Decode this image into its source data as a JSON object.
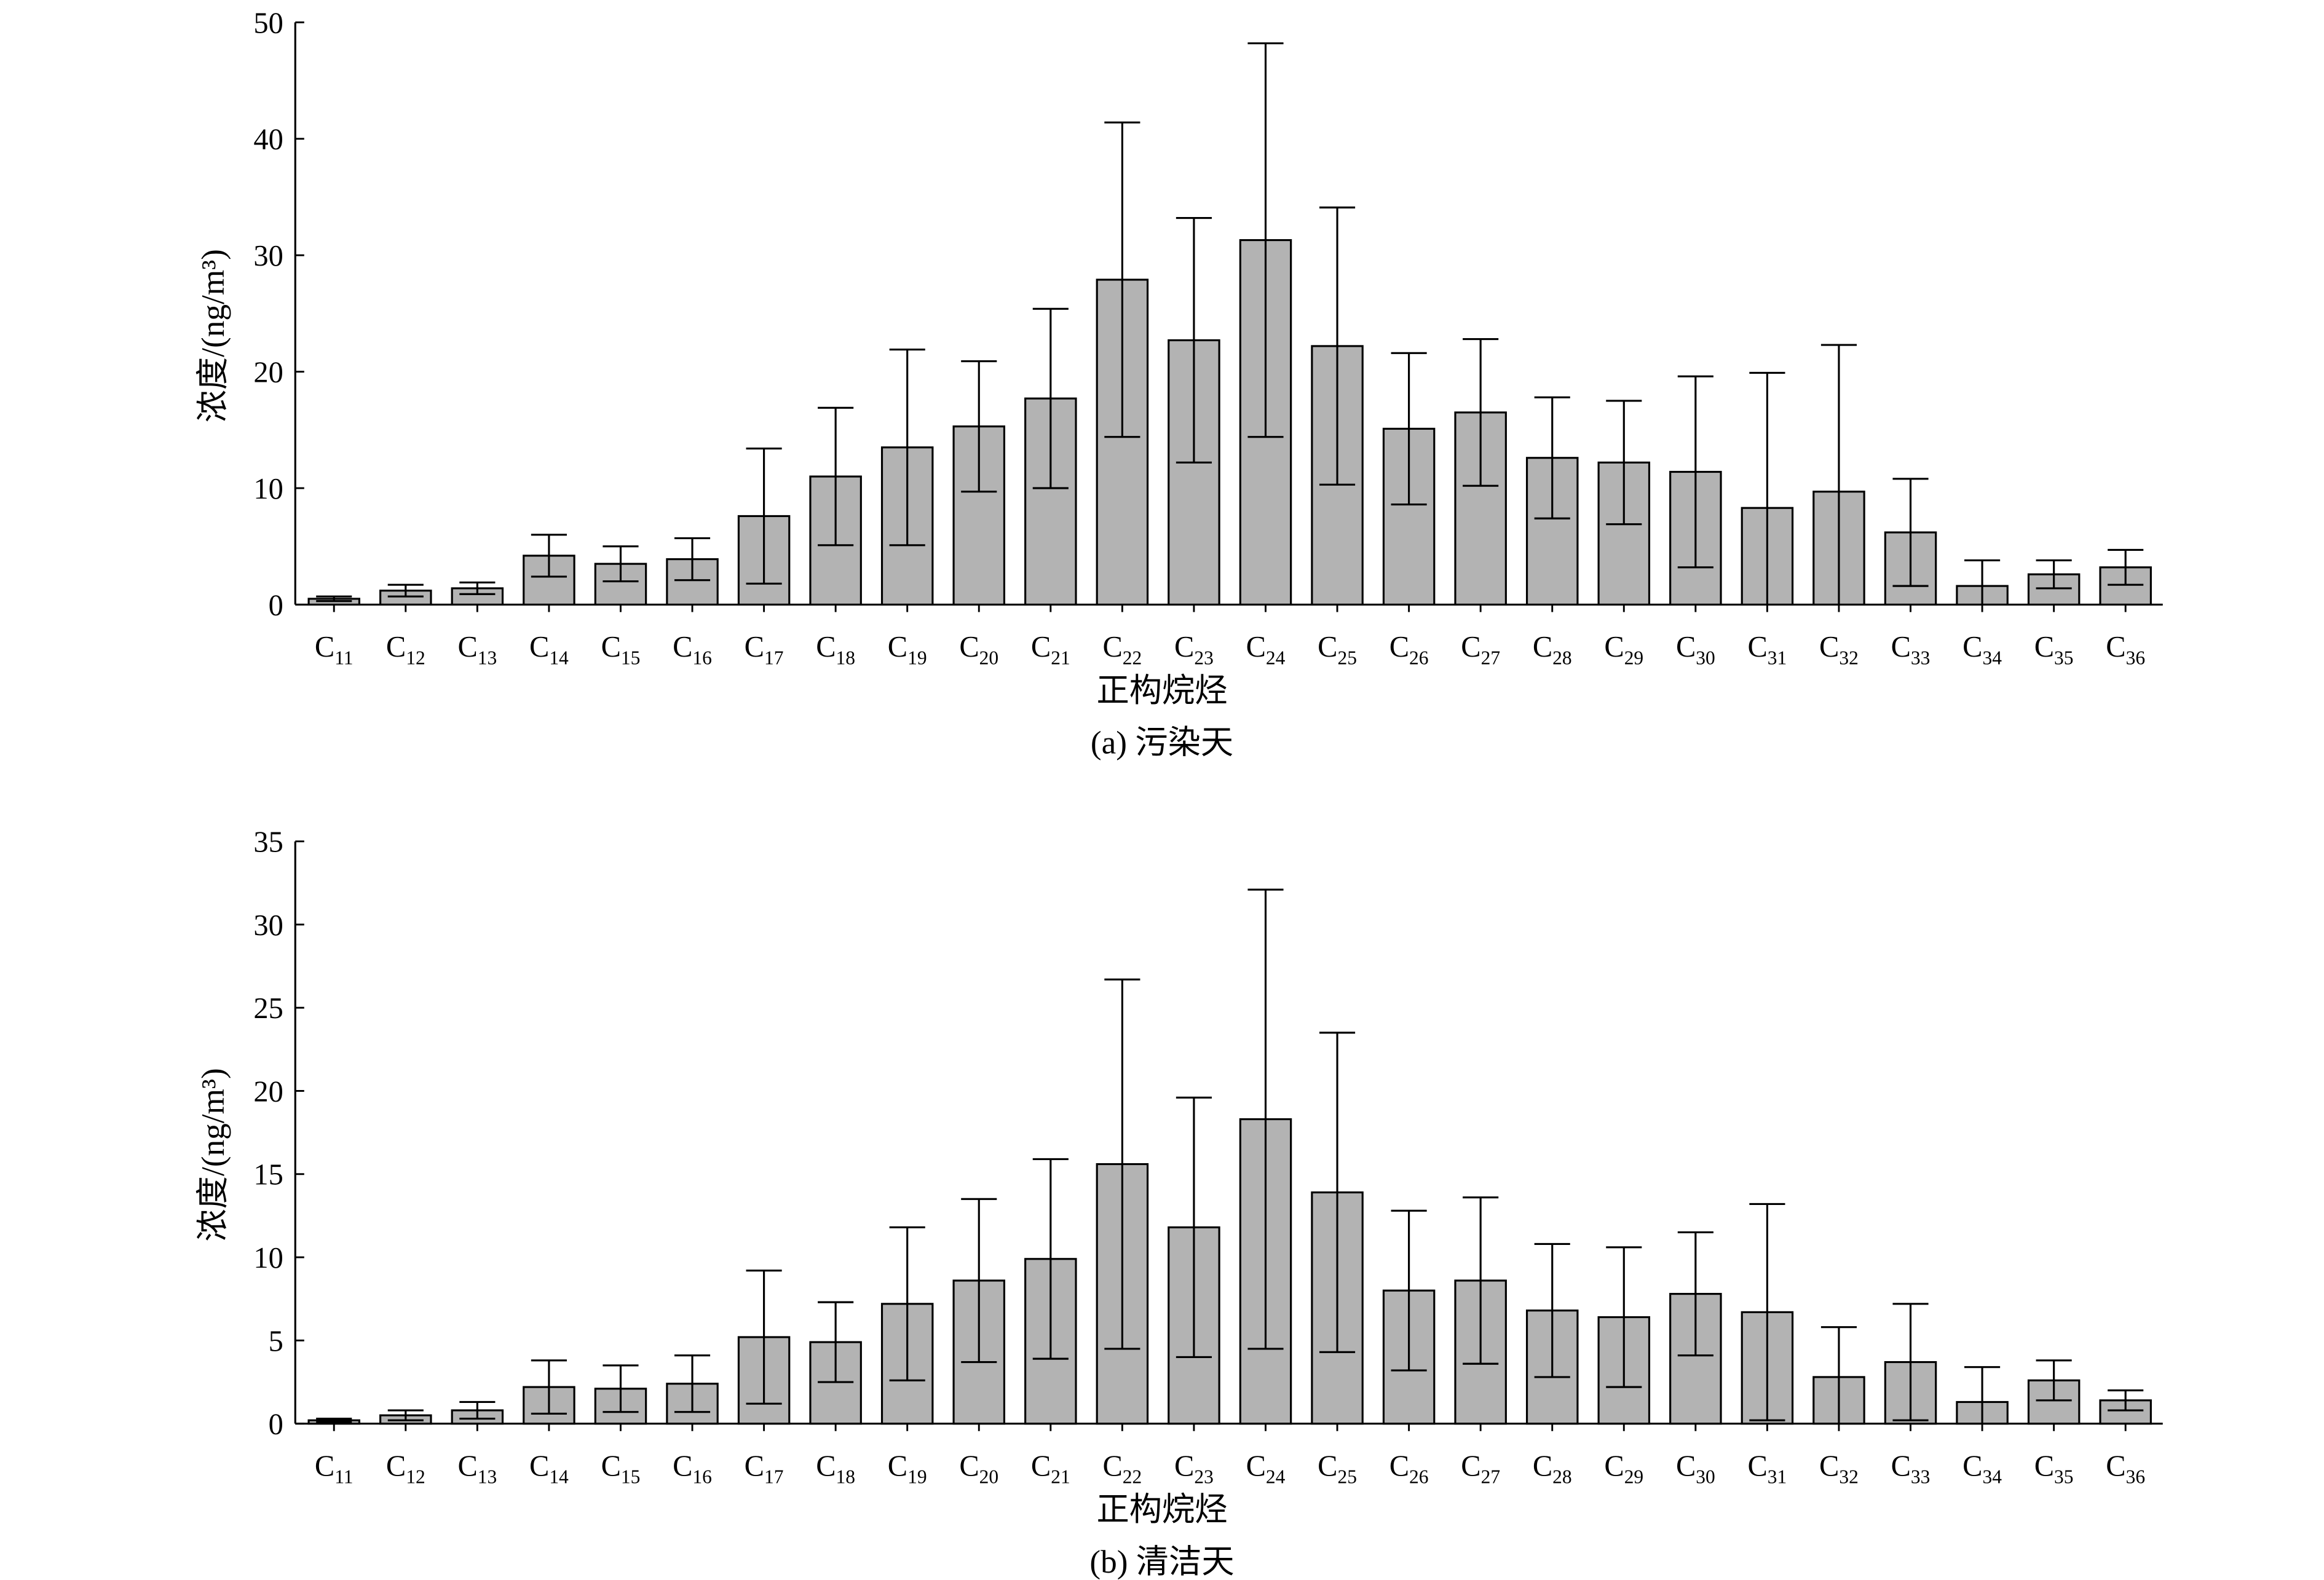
{
  "chart_data": [
    {
      "type": "bar",
      "title": "(a) 污染天",
      "xlabel": "正构烷烃",
      "ylabel": "浓度/(ng/m³)",
      "ylim": [
        0,
        50
      ],
      "yticks": [
        0,
        10,
        20,
        30,
        40,
        50
      ],
      "categories": [
        "C11",
        "C12",
        "C13",
        "C14",
        "C15",
        "C16",
        "C17",
        "C18",
        "C19",
        "C20",
        "C21",
        "C22",
        "C23",
        "C24",
        "C25",
        "C26",
        "C27",
        "C28",
        "C29",
        "C30",
        "C31",
        "C32",
        "C33",
        "C34",
        "C35",
        "C36"
      ],
      "values": [
        0.5,
        1.2,
        1.4,
        4.2,
        3.5,
        3.9,
        7.6,
        11.0,
        13.5,
        15.3,
        17.7,
        27.9,
        22.7,
        31.3,
        22.2,
        15.1,
        16.5,
        12.6,
        12.2,
        11.4,
        8.3,
        9.7,
        6.2,
        1.6,
        2.6,
        3.2
      ],
      "errors": [
        0.2,
        0.5,
        0.5,
        1.8,
        1.5,
        1.8,
        5.8,
        5.9,
        8.4,
        5.6,
        7.7,
        13.5,
        10.5,
        16.9,
        11.9,
        6.5,
        6.3,
        5.2,
        5.3,
        8.2,
        11.6,
        12.6,
        4.6,
        2.2,
        1.2,
        1.5
      ],
      "bar_color": "#b3b3b3",
      "grid": false
    },
    {
      "type": "bar",
      "title": "(b) 清洁天",
      "xlabel": "正构烷烃",
      "ylabel": "浓度/(ng/m³)",
      "ylim": [
        0,
        35
      ],
      "yticks": [
        0,
        5,
        10,
        15,
        20,
        25,
        30,
        35
      ],
      "categories": [
        "C11",
        "C12",
        "C13",
        "C14",
        "C15",
        "C16",
        "C17",
        "C18",
        "C19",
        "C20",
        "C21",
        "C22",
        "C23",
        "C24",
        "C25",
        "C26",
        "C27",
        "C28",
        "C29",
        "C30",
        "C31",
        "C32",
        "C33",
        "C34",
        "C35",
        "C36"
      ],
      "values": [
        0.2,
        0.5,
        0.8,
        2.2,
        2.1,
        2.4,
        5.2,
        4.9,
        7.2,
        8.6,
        9.9,
        15.6,
        11.8,
        18.3,
        13.9,
        8.0,
        8.6,
        6.8,
        6.4,
        7.8,
        6.7,
        2.8,
        3.7,
        1.3,
        2.6,
        1.4
      ],
      "errors": [
        0.1,
        0.3,
        0.5,
        1.6,
        1.4,
        1.7,
        4.0,
        2.4,
        4.6,
        4.9,
        6.0,
        11.1,
        7.8,
        13.8,
        9.6,
        4.8,
        5.0,
        4.0,
        4.2,
        3.7,
        6.5,
        3.0,
        3.5,
        2.1,
        1.2,
        0.6
      ],
      "bar_color": "#b3b3b3",
      "grid": false
    }
  ]
}
